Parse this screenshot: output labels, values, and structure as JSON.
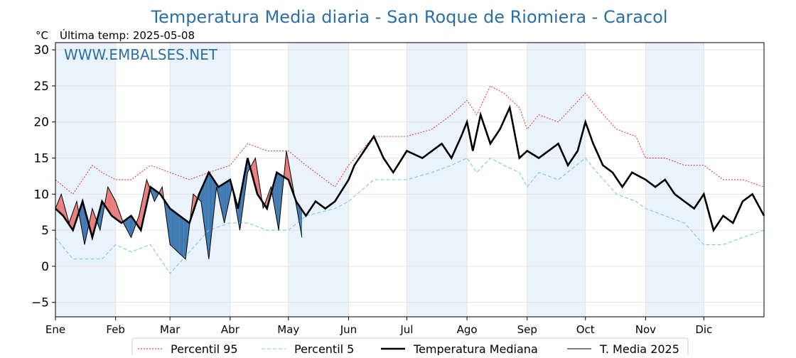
{
  "chart_data": {
    "type": "line",
    "title": "Temperatura Media diaria - San Roque de Riomiera - Caracol",
    "unit_label": "°C",
    "last_reading_label": "Última temp: 2025-05-08",
    "watermark": "WWW.EMBALSES.NET",
    "xlabel": "",
    "ylabel": "",
    "ylim": [
      -7,
      31
    ],
    "xlim": [
      1,
      366
    ],
    "yticks": [
      -5,
      0,
      5,
      10,
      15,
      20,
      25,
      30
    ],
    "month_ticks": [
      {
        "label": "Ene",
        "day": 1
      },
      {
        "label": "Feb",
        "day": 32
      },
      {
        "label": "Mar",
        "day": 60
      },
      {
        "label": "Abr",
        "day": 91
      },
      {
        "label": "May",
        "day": 121
      },
      {
        "label": "Jun",
        "day": 152
      },
      {
        "label": "Jul",
        "day": 182
      },
      {
        "label": "Ago",
        "day": 213
      },
      {
        "label": "Sep",
        "day": 244
      },
      {
        "label": "Oct",
        "day": 274
      },
      {
        "label": "Nov",
        "day": 305
      },
      {
        "label": "Dic",
        "day": 335
      }
    ],
    "shaded_month_bands": [
      [
        1,
        32
      ],
      [
        60,
        91
      ],
      [
        121,
        152
      ],
      [
        182,
        213
      ],
      [
        244,
        274
      ],
      [
        305,
        335
      ]
    ],
    "grid": true,
    "legend_position": "bottom-center",
    "colors": {
      "p95": "#e31a1c",
      "p5": "#7ec8d8",
      "median": "#000000",
      "current": "#000000",
      "above_median_fill": "#e87070",
      "below_median_fill": "#2b6ca8",
      "band": "#eaf2fb",
      "title": "#2c6fa5"
    },
    "series": [
      {
        "name": "Percentil 95",
        "style": "dotted",
        "x": [
          1,
          10,
          20,
          25,
          32,
          40,
          50,
          60,
          70,
          80,
          91,
          100,
          110,
          121,
          130,
          145,
          152,
          165,
          182,
          195,
          205,
          213,
          218,
          225,
          232,
          240,
          244,
          250,
          260,
          274,
          280,
          290,
          300,
          305,
          315,
          325,
          335,
          345,
          355,
          366
        ],
        "y": [
          12,
          10,
          14,
          13,
          12,
          12,
          14,
          13,
          12,
          13,
          14,
          17,
          16,
          16,
          14,
          11,
          14,
          18,
          18,
          19,
          21,
          23,
          21,
          25,
          24,
          22,
          19,
          21,
          20,
          24,
          22,
          19,
          18,
          15,
          15,
          14,
          14,
          12,
          12,
          11
        ]
      },
      {
        "name": "Percentil 5",
        "style": "dashed",
        "x": [
          1,
          10,
          20,
          25,
          32,
          40,
          50,
          60,
          70,
          80,
          91,
          100,
          110,
          121,
          130,
          145,
          152,
          165,
          182,
          195,
          205,
          213,
          218,
          225,
          232,
          240,
          244,
          250,
          260,
          274,
          280,
          290,
          300,
          305,
          315,
          325,
          335,
          345,
          355,
          366
        ],
        "y": [
          4,
          1,
          1,
          1,
          3,
          2,
          3,
          -1,
          2,
          5,
          6,
          6,
          5,
          5,
          7,
          8,
          9,
          12,
          12,
          13,
          14,
          15,
          13,
          15,
          14,
          13,
          11,
          13,
          12,
          15,
          13,
          10,
          9,
          8,
          7,
          6,
          3,
          3,
          4,
          5
        ]
      },
      {
        "name": "Temperatura Mediana",
        "style": "solid-thick",
        "x": [
          1,
          5,
          10,
          15,
          20,
          25,
          30,
          35,
          40,
          45,
          50,
          55,
          60,
          65,
          70,
          75,
          80,
          85,
          91,
          95,
          100,
          105,
          110,
          115,
          121,
          125,
          130,
          135,
          140,
          145,
          152,
          155,
          160,
          165,
          170,
          175,
          182,
          190,
          200,
          205,
          210,
          213,
          216,
          220,
          225,
          230,
          235,
          240,
          244,
          250,
          255,
          260,
          265,
          270,
          274,
          278,
          283,
          288,
          293,
          298,
          305,
          310,
          315,
          320,
          325,
          330,
          335,
          340,
          345,
          350,
          355,
          360,
          366
        ],
        "y": [
          8,
          7,
          5,
          9,
          4,
          9,
          7,
          6,
          7,
          5,
          11,
          10,
          8,
          7,
          6,
          10,
          13,
          11,
          12,
          8,
          15,
          10,
          8,
          13,
          12,
          9,
          7,
          9,
          8,
          9,
          12,
          14,
          16,
          18,
          15,
          13,
          16,
          15,
          17,
          15,
          18,
          20,
          16,
          21,
          17,
          19,
          22,
          15,
          16,
          15,
          16,
          17,
          14,
          16,
          20,
          17,
          14,
          13,
          11,
          13,
          12,
          11,
          12,
          10,
          9,
          8,
          10,
          5,
          7,
          6,
          9,
          10,
          7
        ]
      },
      {
        "name": "T. Media 2025",
        "style": "solid-thin",
        "x": [
          1,
          4,
          8,
          12,
          16,
          20,
          24,
          28,
          32,
          36,
          40,
          44,
          48,
          52,
          56,
          60,
          64,
          68,
          72,
          76,
          80,
          84,
          88,
          92,
          96,
          100,
          104,
          108,
          112,
          116,
          120,
          124,
          128
        ],
        "y": [
          8,
          10,
          6,
          9,
          3,
          8,
          5,
          11,
          9,
          6,
          4,
          7,
          12,
          9,
          11,
          3,
          2,
          1,
          10,
          9,
          1,
          11,
          6,
          11,
          5,
          13,
          15,
          8,
          11,
          5,
          16,
          10,
          4
        ]
      }
    ],
    "legend": [
      "Percentil 95",
      "Percentil 5",
      "Temperatura Mediana",
      "T. Media 2025"
    ]
  }
}
